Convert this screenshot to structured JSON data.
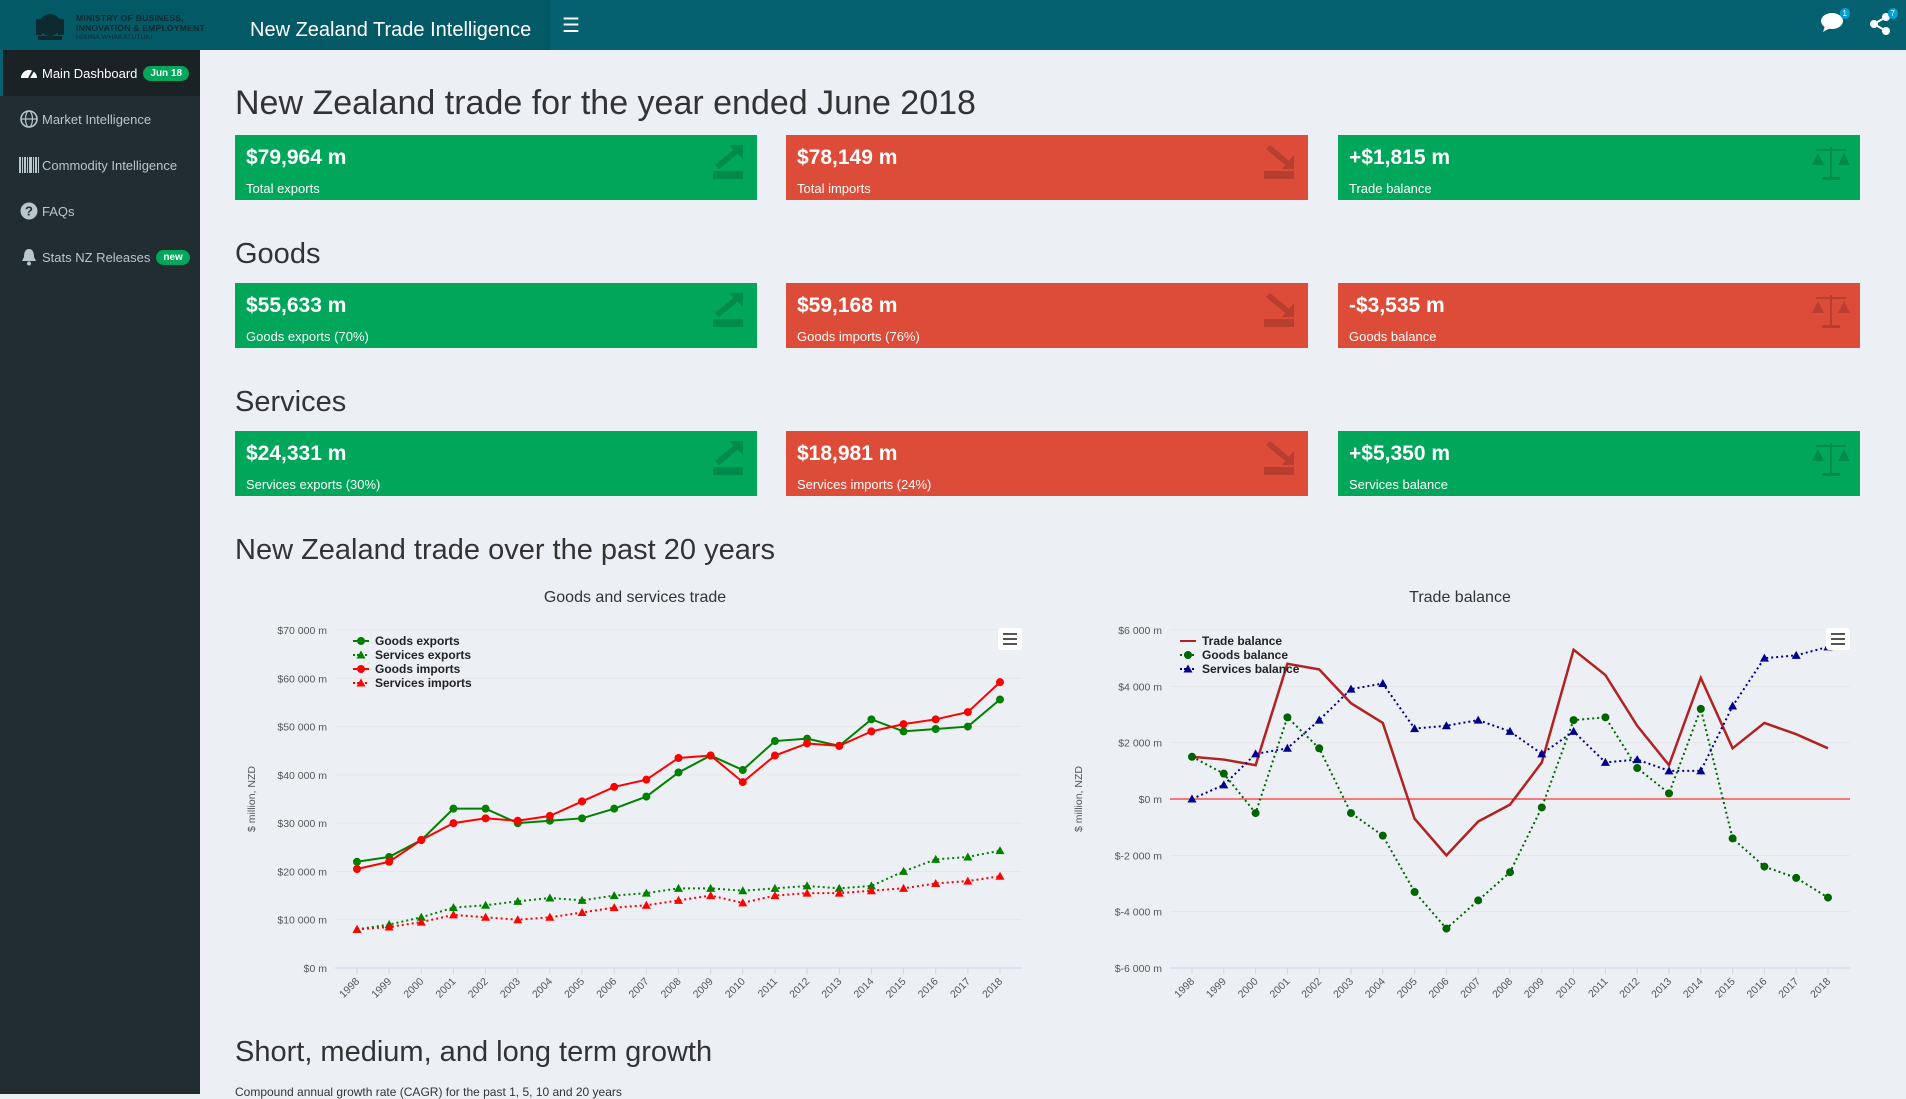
{
  "header": {
    "logo_line1": "MINISTRY OF BUSINESS,",
    "logo_line2": "INNOVATION & EMPLOYMENT",
    "logo_line3": "HĪKINA WHAKATUTUKI",
    "app_title": "New Zealand Trade Intelligence",
    "chat_badge": "1",
    "share_badge": "7"
  },
  "sidebar": {
    "items": [
      {
        "label": "Main Dashboard",
        "badge": "Jun 18",
        "icon": "dashboard-icon"
      },
      {
        "label": "Market Intelligence",
        "icon": "globe-icon"
      },
      {
        "label": "Commodity Intelligence",
        "icon": "barcode-icon"
      },
      {
        "label": "FAQs",
        "icon": "question-icon"
      },
      {
        "label": "Stats NZ Releases",
        "badge": "new",
        "icon": "bell-icon"
      }
    ]
  },
  "main": {
    "title": "New Zealand trade for the year ended June 2018",
    "total": [
      {
        "value": "$79,964 m",
        "label": "Total exports",
        "color": "#00a65a",
        "icon": "export-icon"
      },
      {
        "value": "$78,149 m",
        "label": "Total imports",
        "color": "#dd4b39",
        "icon": "import-icon"
      },
      {
        "value": "+$1,815 m",
        "label": "Trade balance",
        "color": "#00a65a",
        "icon": "balance-scale-icon"
      }
    ],
    "goods_heading": "Goods",
    "goods": [
      {
        "value": "$55,633 m",
        "label": "Goods exports (70%)",
        "color": "#00a65a",
        "icon": "export-icon"
      },
      {
        "value": "$59,168 m",
        "label": "Goods imports (76%)",
        "color": "#dd4b39",
        "icon": "import-icon"
      },
      {
        "value": "-$3,535 m",
        "label": "Goods balance",
        "color": "#dd4b39",
        "icon": "balance-scale-icon"
      }
    ],
    "services_heading": "Services",
    "services": [
      {
        "value": "$24,331 m",
        "label": "Services exports (30%)",
        "color": "#00a65a",
        "icon": "export-icon"
      },
      {
        "value": "$18,981 m",
        "label": "Services imports (24%)",
        "color": "#dd4b39",
        "icon": "import-icon"
      },
      {
        "value": "+$5,350 m",
        "label": "Services balance",
        "color": "#00a65a",
        "icon": "balance-scale-icon"
      }
    ],
    "trend_heading": "New Zealand trade over the past 20 years",
    "growth_heading": "Short, medium, and long term growth",
    "growth_subtitle": "Compound annual growth rate (CAGR) for the past 1, 5, 10 and 20 years"
  },
  "chart_data": [
    {
      "type": "line",
      "title": "Goods and services trade",
      "ylabel": "$ million, NZD",
      "ylim": [
        0,
        70000
      ],
      "yticks": [
        "$0 m",
        "$10 000 m",
        "$20 000 m",
        "$30 000 m",
        "$40 000 m",
        "$50 000 m",
        "$60 000 m",
        "$70 000 m"
      ],
      "x": [
        "1998",
        "1999",
        "2000",
        "2001",
        "2002",
        "2003",
        "2004",
        "2005",
        "2006",
        "2007",
        "2008",
        "2009",
        "2010",
        "2011",
        "2012",
        "2013",
        "2014",
        "2015",
        "2016",
        "2017",
        "2018"
      ],
      "legend": "top-left",
      "series": [
        {
          "name": "Goods exports",
          "color": "#008000",
          "marker": "circle",
          "dash": "solid",
          "values": [
            22000,
            23000,
            26500,
            33000,
            33000,
            30000,
            30500,
            31000,
            33000,
            35500,
            40500,
            44000,
            41000,
            47000,
            47500,
            46000,
            51500,
            49000,
            49500,
            50000,
            55600
          ]
        },
        {
          "name": "Services exports",
          "color": "#008000",
          "marker": "triangle",
          "dash": "dotted",
          "values": [
            8000,
            9000,
            10500,
            12500,
            13000,
            13800,
            14500,
            14000,
            15000,
            15500,
            16500,
            16500,
            16000,
            16500,
            17000,
            16500,
            17000,
            20000,
            22500,
            23000,
            24300
          ]
        },
        {
          "name": "Goods imports",
          "color": "#ff0000",
          "marker": "circle",
          "dash": "solid",
          "values": [
            20500,
            22000,
            26500,
            30000,
            31000,
            30500,
            31500,
            34500,
            37500,
            39000,
            43500,
            44000,
            38500,
            44000,
            46500,
            46000,
            49000,
            50500,
            51500,
            53000,
            59200
          ]
        },
        {
          "name": "Services imports",
          "color": "#ff0000",
          "marker": "triangle",
          "dash": "dotted",
          "values": [
            8000,
            8500,
            9500,
            11000,
            10500,
            10000,
            10500,
            11500,
            12500,
            13000,
            14000,
            15000,
            13500,
            15000,
            15500,
            15500,
            16000,
            16500,
            17500,
            18000,
            19000
          ]
        }
      ]
    },
    {
      "type": "line",
      "title": "Trade balance",
      "ylabel": "$ million, NZD",
      "ylim": [
        -6000,
        6000
      ],
      "yticks": [
        "$-6 000 m",
        "$-4 000 m",
        "$-2 000 m",
        "$0 m",
        "$2 000 m",
        "$4 000 m",
        "$6 000 m"
      ],
      "x": [
        "1998",
        "1999",
        "2000",
        "2001",
        "2002",
        "2003",
        "2004",
        "2005",
        "2006",
        "2007",
        "2008",
        "2009",
        "2010",
        "2011",
        "2012",
        "2013",
        "2014",
        "2015",
        "2016",
        "2017",
        "2018"
      ],
      "legend": "top-left",
      "series": [
        {
          "name": "Trade balance",
          "color": "#b22222",
          "marker": "none",
          "dash": "solid",
          "values": [
            1500,
            1400,
            1200,
            4800,
            4600,
            3400,
            2700,
            -700,
            -2000,
            -800,
            -200,
            1300,
            5300,
            4400,
            2600,
            1200,
            4300,
            1800,
            2700,
            2300,
            1800
          ]
        },
        {
          "name": "Goods balance",
          "color": "#006400",
          "marker": "circle",
          "dash": "dotted",
          "values": [
            1500,
            900,
            -500,
            2900,
            1800,
            -500,
            -1300,
            -3300,
            -4600,
            -3600,
            -2600,
            -300,
            2800,
            2900,
            1100,
            200,
            3200,
            -1400,
            -2400,
            -2800,
            -3500
          ]
        },
        {
          "name": "Services balance",
          "color": "#00008b",
          "marker": "triangle",
          "dash": "dotted",
          "values": [
            0,
            500,
            1600,
            1800,
            2800,
            3900,
            4100,
            2500,
            2600,
            2800,
            2400,
            1600,
            2400,
            1300,
            1400,
            1000,
            1000,
            3300,
            5000,
            5100,
            5400
          ]
        }
      ]
    }
  ]
}
